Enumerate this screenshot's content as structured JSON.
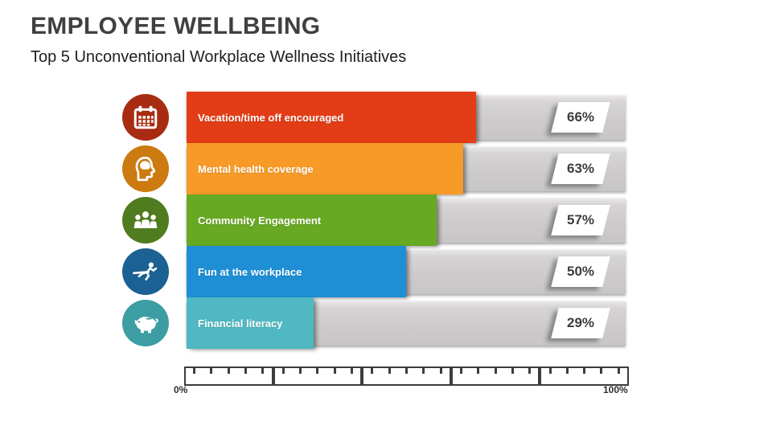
{
  "header": {
    "title": "EMPLOYEE WELLBEING",
    "subtitle": "Top 5 Unconventional Workplace Wellness Initiatives"
  },
  "chart_data": {
    "type": "bar",
    "orientation": "horizontal",
    "title": "Top 5 Unconventional Workplace Wellness Initiatives",
    "categories": [
      "Vacation/time off encouraged",
      "Mental health coverage",
      "Community Engagement",
      "Fun at the workplace",
      "Financial literacy"
    ],
    "values": [
      66,
      63,
      57,
      50,
      29
    ],
    "value_labels": [
      "66%",
      "63%",
      "57%",
      "50%",
      "29%"
    ],
    "xlim": [
      0,
      100
    ],
    "axis": {
      "min_label": "0%",
      "max_label": "100%",
      "major_divisions": 5,
      "minor_ticks_per_division": 5
    },
    "bar_colors": [
      "#e23d17",
      "#f79a28",
      "#68a923",
      "#1e8fd4",
      "#4fb8c2"
    ],
    "icon_colors": [
      "#a82c12",
      "#cc7b10",
      "#507c20",
      "#1c6193",
      "#3c9da3"
    ],
    "icons": [
      "calendar-icon",
      "head-brain-icon",
      "people-group-icon",
      "runner-icon",
      "piggy-bank-icon"
    ],
    "track_color": "#cdcbcc",
    "legend": "none",
    "grid": "off"
  }
}
